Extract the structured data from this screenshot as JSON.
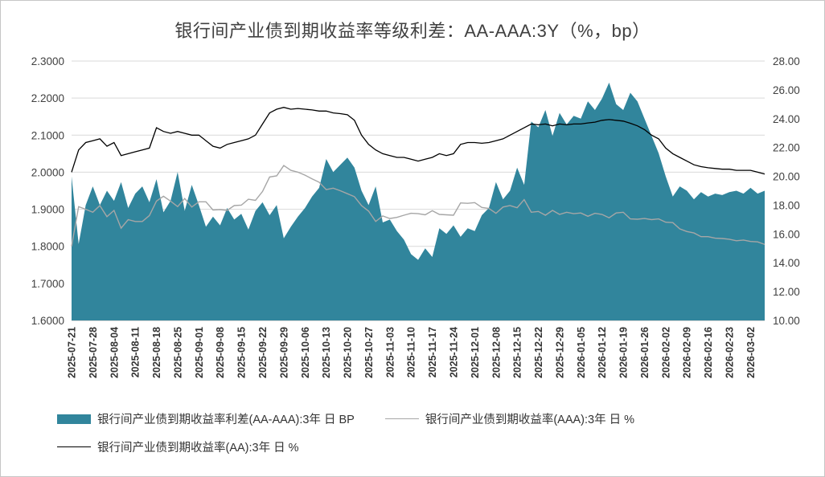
{
  "chart_data": {
    "type": "area",
    "title": "银行间产业债到期收益率等级利差：AA-AAA:3Y（%，bp）",
    "left_axis": {
      "min": 1.6,
      "max": 2.3,
      "ticks": [
        "2.3000",
        "2.2000",
        "2.1000",
        "2.0000",
        "1.9000",
        "1.8000",
        "1.7000",
        "1.6000"
      ]
    },
    "right_axis": {
      "min": 10,
      "max": 28,
      "ticks": [
        "28.00",
        "26.00",
        "24.00",
        "22.00",
        "20.00",
        "18.00",
        "16.00",
        "14.00",
        "12.00",
        "10.00"
      ]
    },
    "points_per_label": 3,
    "x_labels": [
      "2025-07-21",
      "2025-07-28",
      "2025-08-04",
      "2025-08-11",
      "2025-08-18",
      "2025-08-25",
      "2025-09-01",
      "2025-09-08",
      "2025-09-15",
      "2025-09-22",
      "2025-09-29",
      "2025-10-06",
      "2025-10-13",
      "2025-10-20",
      "2025-10-27",
      "2025-11-03",
      "2025-11-10",
      "2025-11-17",
      "2025-11-24",
      "2025-12-01",
      "2025-12-08",
      "2025-12-15",
      "2025-12-22",
      "2025-12-29",
      "2026-01-05",
      "2026-01-12",
      "2026-01-19",
      "2026-01-26",
      "2026-02-02",
      "2026-02-09",
      "2026-02-16",
      "2026-02-23",
      "2026-03-02"
    ],
    "series": [
      {
        "name": "银行间产业债到期收益率利差(AA-AAA):3年 日 BP",
        "type": "area",
        "axis": "right",
        "color": "#31859C",
        "values": [
          20.0,
          15.3,
          18.0,
          19.3,
          18.0,
          19.0,
          18.3,
          19.6,
          17.8,
          18.8,
          19.3,
          18.2,
          19.8,
          17.5,
          18.3,
          20.3,
          17.6,
          19.4,
          18.0,
          16.5,
          17.2,
          16.6,
          17.8,
          17.0,
          17.4,
          16.3,
          17.6,
          18.2,
          17.3,
          18.0,
          15.7,
          16.5,
          17.2,
          17.8,
          18.6,
          19.2,
          21.2,
          20.3,
          20.8,
          21.3,
          20.6,
          19.0,
          18.0,
          19.3,
          16.8,
          17.0,
          16.2,
          15.6,
          14.6,
          14.2,
          15.0,
          14.4,
          16.4,
          16.0,
          16.6,
          15.8,
          16.4,
          16.2,
          17.3,
          17.8,
          19.6,
          18.4,
          19.0,
          20.6,
          19.4,
          23.8,
          23.4,
          24.6,
          22.8,
          24.4,
          23.6,
          24.2,
          24.0,
          25.2,
          24.6,
          25.4,
          26.5,
          25.0,
          24.6,
          25.8,
          25.2,
          24.0,
          22.8,
          21.6,
          20.0,
          18.6,
          19.3,
          19.0,
          18.4,
          18.9,
          18.6,
          18.8,
          18.7,
          18.9,
          19.0,
          18.8,
          19.2,
          18.8,
          19.0
        ]
      },
      {
        "name": "银行间产业债到期收益率(AAA):3年 日 %",
        "type": "line",
        "axis": "left",
        "color": "#A6A6A6",
        "values": [
          1.8,
          1.907,
          1.9,
          1.892,
          1.91,
          1.88,
          1.897,
          1.849,
          1.872,
          1.867,
          1.867,
          1.883,
          1.922,
          1.935,
          1.922,
          1.907,
          1.929,
          1.906,
          1.92,
          1.92,
          1.898,
          1.899,
          1.897,
          1.91,
          1.911,
          1.927,
          1.924,
          1.948,
          1.987,
          1.99,
          2.018,
          2.005,
          2.0,
          1.992,
          1.982,
          1.973,
          1.953,
          1.957,
          1.95,
          1.942,
          1.934,
          1.91,
          1.895,
          1.867,
          1.882,
          1.875,
          1.878,
          1.884,
          1.889,
          1.888,
          1.885,
          1.896,
          1.886,
          1.885,
          1.884,
          1.917,
          1.916,
          1.918,
          1.905,
          1.902,
          1.889,
          1.906,
          1.91,
          1.904,
          1.926,
          1.892,
          1.894,
          1.884,
          1.897,
          1.886,
          1.892,
          1.888,
          1.89,
          1.881,
          1.889,
          1.886,
          1.877,
          1.89,
          1.892,
          1.874,
          1.873,
          1.875,
          1.872,
          1.874,
          1.865,
          1.864,
          1.847,
          1.84,
          1.836,
          1.826,
          1.826,
          1.822,
          1.821,
          1.819,
          1.815,
          1.817,
          1.813,
          1.812,
          1.805
        ]
      },
      {
        "name": "银行间产业债到期收益率(AA):3年 日 %",
        "type": "line",
        "axis": "left",
        "color": "#000000",
        "values": [
          2.0,
          2.06,
          2.08,
          2.085,
          2.09,
          2.07,
          2.08,
          2.045,
          2.05,
          2.055,
          2.06,
          2.065,
          2.12,
          2.11,
          2.105,
          2.11,
          2.105,
          2.1,
          2.1,
          2.085,
          2.07,
          2.065,
          2.075,
          2.08,
          2.085,
          2.09,
          2.1,
          2.13,
          2.16,
          2.17,
          2.175,
          2.17,
          2.172,
          2.17,
          2.168,
          2.165,
          2.165,
          2.16,
          2.158,
          2.155,
          2.14,
          2.1,
          2.075,
          2.06,
          2.05,
          2.045,
          2.04,
          2.04,
          2.035,
          2.03,
          2.035,
          2.04,
          2.05,
          2.045,
          2.05,
          2.075,
          2.08,
          2.08,
          2.078,
          2.08,
          2.085,
          2.09,
          2.1,
          2.11,
          2.12,
          2.13,
          2.128,
          2.13,
          2.125,
          2.13,
          2.128,
          2.13,
          2.13,
          2.133,
          2.135,
          2.14,
          2.142,
          2.14,
          2.138,
          2.132,
          2.125,
          2.115,
          2.1,
          2.09,
          2.065,
          2.05,
          2.04,
          2.03,
          2.02,
          2.015,
          2.012,
          2.01,
          2.008,
          2.008,
          2.005,
          2.005,
          2.005,
          2.0,
          1.995
        ]
      }
    ],
    "grid": true,
    "legend_position": "bottom"
  }
}
